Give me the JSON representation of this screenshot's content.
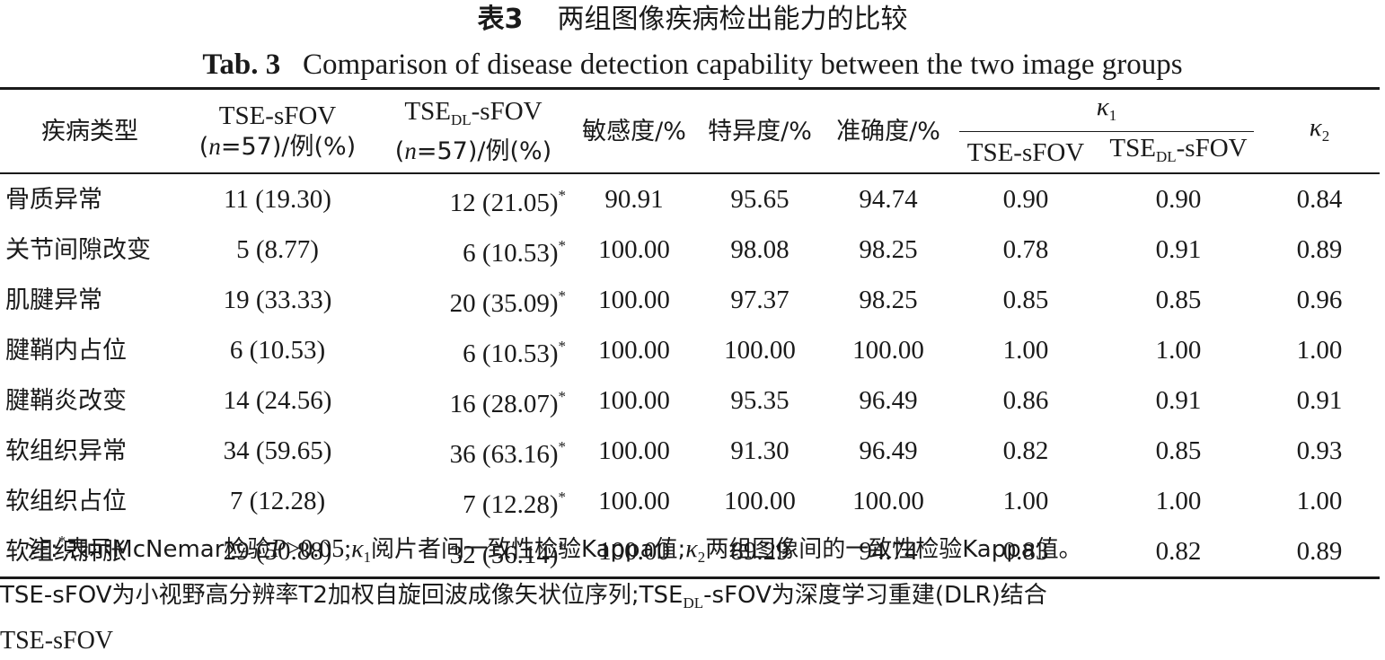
{
  "title": {
    "cn_label": "表3",
    "cn_text": "两组图像疾病检出能力的比较",
    "en_label": "Tab. 3",
    "en_text": "Comparison of disease detection capability between the two image groups"
  },
  "header": {
    "col_type": "疾病类型",
    "col_tse_line1": "TSE-sFOV",
    "col_tse_n": "n",
    "col_tse_line2_rest": "=57)/例(%)",
    "col_tsedl_prefix": "TSE",
    "col_tsedl_sub": "DL",
    "col_tsedl_suffix": "-sFOV",
    "col_tsedl_n": "n",
    "col_tsedl_line2_rest": "=57)/例(%)",
    "open_paren": "(",
    "col_sens": "敏感度/%",
    "col_spec": "特异度/%",
    "col_acc": "准确度/%",
    "kappa_symbol": "κ",
    "kappa1_sub": "1",
    "kappa2_sub": "2",
    "k1_tse": "TSE-sFOV",
    "k1_tsedl_prefix": "TSE",
    "k1_tsedl_sub": "DL",
    "k1_tsedl_suffix": "-sFOV"
  },
  "rows": [
    {
      "type": "骨质异常",
      "tse": "11 (19.30)",
      "tsedl": "12 (21.05)",
      "star": "*",
      "sens": "90.91",
      "spec": "95.65",
      "acc": "94.74",
      "k1_tse": "0.90",
      "k1_tsedl": "0.90",
      "k2": "0.84"
    },
    {
      "type": "关节间隙改变",
      "tse": "5 (8.77)",
      "tsedl": "6 (10.53)",
      "star": "*",
      "sens": "100.00",
      "spec": "98.08",
      "acc": "98.25",
      "k1_tse": "0.78",
      "k1_tsedl": "0.91",
      "k2": "0.89"
    },
    {
      "type": "肌腱异常",
      "tse": "19 (33.33)",
      "tsedl": "20 (35.09)",
      "star": "*",
      "sens": "100.00",
      "spec": "97.37",
      "acc": "98.25",
      "k1_tse": "0.85",
      "k1_tsedl": "0.85",
      "k2": "0.96"
    },
    {
      "type": "腱鞘内占位",
      "tse": "6 (10.53)",
      "tsedl": "6 (10.53)",
      "star": "*",
      "sens": "100.00",
      "spec": "100.00",
      "acc": "100.00",
      "k1_tse": "1.00",
      "k1_tsedl": "1.00",
      "k2": "1.00"
    },
    {
      "type": "腱鞘炎改变",
      "tse": "14 (24.56)",
      "tsedl": "16 (28.07)",
      "star": "*",
      "sens": "100.00",
      "spec": "95.35",
      "acc": "96.49",
      "k1_tse": "0.86",
      "k1_tsedl": "0.91",
      "k2": "0.91"
    },
    {
      "type": "软组织异常",
      "tse": "34 (59.65)",
      "tsedl": "36 (63.16)",
      "star": "*",
      "sens": "100.00",
      "spec": "91.30",
      "acc": "96.49",
      "k1_tse": "0.82",
      "k1_tsedl": "0.85",
      "k2": "0.93"
    },
    {
      "type": "软组织占位",
      "tse": "7 (12.28)",
      "tsedl": "7 (12.28)",
      "star": "*",
      "sens": "100.00",
      "spec": "100.00",
      "acc": "100.00",
      "k1_tse": "1.00",
      "k1_tsedl": "1.00",
      "k2": "1.00"
    },
    {
      "type": "软组织肿胀",
      "tse": "29 (50.88)",
      "tsedl": "32 (56.14)",
      "star": "*",
      "sens": "100.00",
      "spec": "89.29",
      "acc": "94.74",
      "k1_tse": "0.83",
      "k1_tsedl": "0.82",
      "k2": "0.89"
    }
  ],
  "note": {
    "lead": "注:",
    "star": "*",
    "part1": "表示McNemar检验",
    "p_symbol": "P",
    "part2": ">0.05;",
    "kappa": "κ",
    "k1_sub": "1",
    "part3": "阅片者间一致性检验Kappa值;",
    "k2_sub": "2",
    "part4": "两组图像间的一致性检验Kappa值。",
    "line2a": "TSE-sFOV为小视野高分辨率T2加权自旋回波成像矢状位序列;TSE",
    "line2_sub": "DL",
    "line2b": "-sFOV为深度学习重建(DLR)结合",
    "line3": "TSE-sFOV"
  }
}
